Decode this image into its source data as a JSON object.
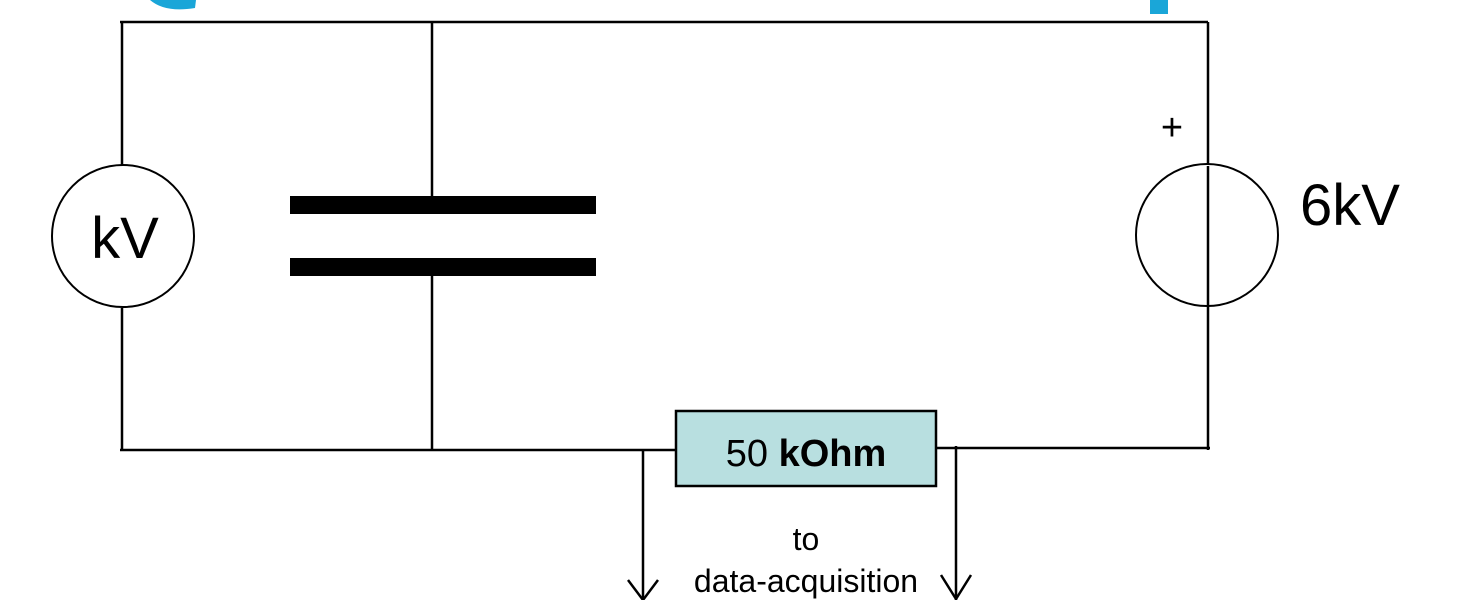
{
  "voltmeter": {
    "label": "kV"
  },
  "source": {
    "polarity": "+",
    "label": "6kV"
  },
  "resistor": {
    "value": "50",
    "unit": "kOhm",
    "fill_color": "#b8dfe0"
  },
  "output": {
    "line1": "to",
    "line2": "data-acquisition"
  },
  "accent_color": "#1aa6d8"
}
